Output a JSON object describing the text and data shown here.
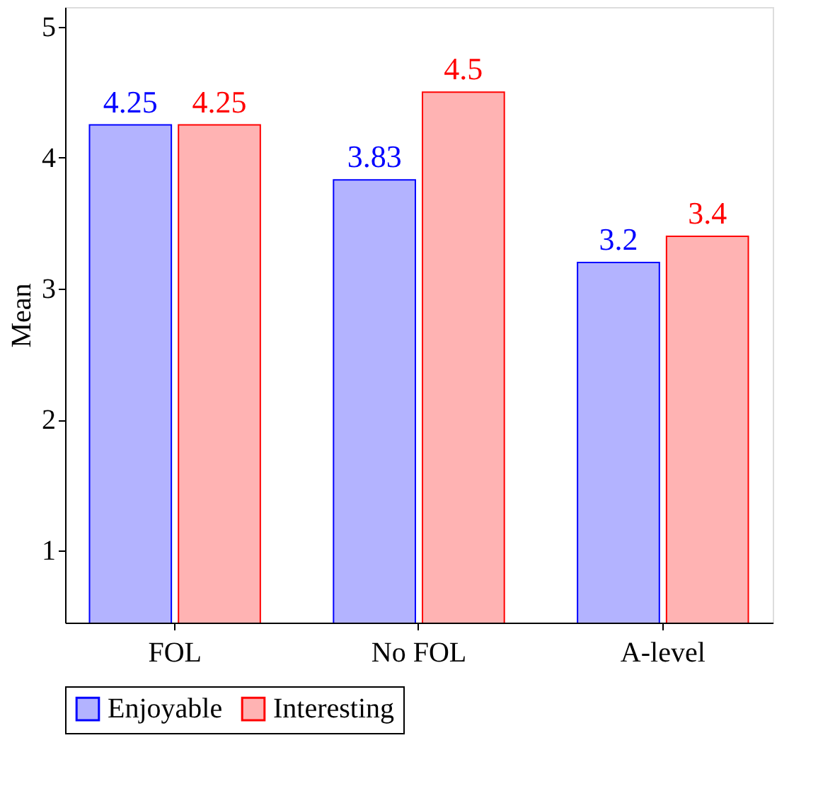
{
  "chart_data": {
    "type": "bar",
    "ylabel": "Mean",
    "categories": [
      "FOL",
      "No FOL",
      "A-level"
    ],
    "series": [
      {
        "name": "Enjoyable",
        "color": "#b3b3ff",
        "values": [
          4.25,
          3.83,
          3.2
        ]
      },
      {
        "name": "Interesting",
        "color": "#ffb3b3",
        "values": [
          4.25,
          4.5,
          3.4
        ]
      }
    ],
    "ylim": [
      0.45,
      5.15
    ],
    "yticks": [
      1,
      2,
      3,
      4,
      5
    ],
    "data_labels": true,
    "legend": "bottom",
    "grid": false
  }
}
